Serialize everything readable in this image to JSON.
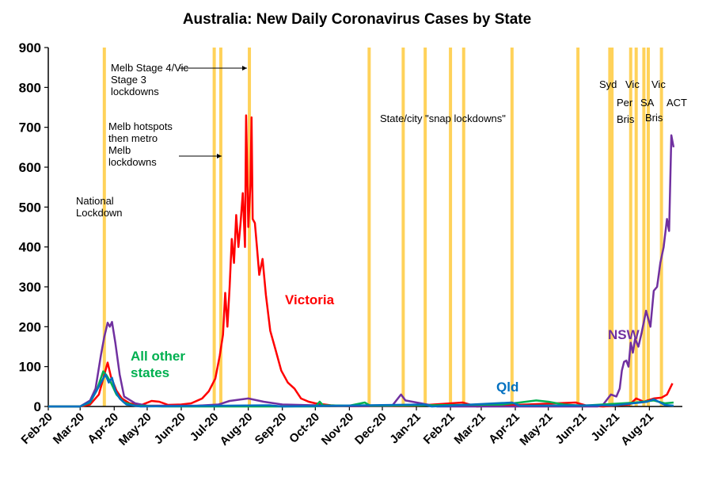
{
  "chart_data": {
    "type": "line",
    "title": "Australia: New Daily Coronavirus Cases by State",
    "xlabel": "",
    "ylabel": "",
    "ylim": [
      0,
      900
    ],
    "yticks": [
      0,
      100,
      200,
      300,
      400,
      500,
      600,
      700,
      800,
      900
    ],
    "xlim": [
      "2020-02-01",
      "2021-08-31"
    ],
    "xticks": [
      {
        "date": "2020-02-01",
        "label": "Feb-20"
      },
      {
        "date": "2020-03-01",
        "label": "Mar-20"
      },
      {
        "date": "2020-04-01",
        "label": "Apr-20"
      },
      {
        "date": "2020-05-01",
        "label": "May-20"
      },
      {
        "date": "2020-06-01",
        "label": "Jun-20"
      },
      {
        "date": "2020-07-01",
        "label": "Jul-20"
      },
      {
        "date": "2020-08-01",
        "label": "Aug-20"
      },
      {
        "date": "2020-09-01",
        "label": "Sep-20"
      },
      {
        "date": "2020-10-01",
        "label": "Oct-20"
      },
      {
        "date": "2020-11-01",
        "label": "Nov-20"
      },
      {
        "date": "2020-12-01",
        "label": "Dec-20"
      },
      {
        "date": "2021-01-01",
        "label": "Jan-21"
      },
      {
        "date": "2021-02-01",
        "label": "Feb-21"
      },
      {
        "date": "2021-03-01",
        "label": "Mar-21"
      },
      {
        "date": "2021-04-01",
        "label": "Apr-21"
      },
      {
        "date": "2021-05-01",
        "label": "May-21"
      },
      {
        "date": "2021-06-01",
        "label": "Jun-21"
      },
      {
        "date": "2021-07-01",
        "label": "Jul-21"
      },
      {
        "date": "2021-08-01",
        "label": "Aug-21"
      }
    ],
    "grid": false,
    "lockdown_lines": {
      "color": "#FFD25A",
      "dates": [
        "2020-03-23",
        "2020-07-01",
        "2020-07-07",
        "2020-08-02",
        "2020-11-19",
        "2020-12-20",
        "2021-01-09",
        "2021-02-01",
        "2021-02-13",
        "2021-03-29",
        "2021-05-28",
        "2021-06-26",
        "2021-06-28",
        "2021-07-15",
        "2021-07-20",
        "2021-07-27",
        "2021-07-31",
        "2021-08-12"
      ]
    },
    "annotations": [
      {
        "lines": [
          "National",
          "Lockdown"
        ]
      },
      {
        "lines": [
          "Melb hotspots",
          "then metro",
          "Melb",
          "lockdowns"
        ]
      },
      {
        "lines": [
          "Melb Stage 4/Vic",
          "Stage 3",
          "lockdowns"
        ]
      },
      {
        "lines": [
          "State/city \"snap lockdowns\""
        ]
      },
      {
        "lines": [
          "Syd"
        ]
      },
      {
        "lines": [
          "Vic"
        ]
      },
      {
        "lines": [
          "Per"
        ]
      },
      {
        "lines": [
          "SA"
        ]
      },
      {
        "lines": [
          "Bris"
        ]
      },
      {
        "lines": [
          "Vic"
        ]
      },
      {
        "lines": [
          "Bris"
        ]
      },
      {
        "lines": [
          "ACT"
        ]
      }
    ],
    "series_labels": [
      {
        "text": "Victoria",
        "series": "Victoria",
        "color": "#ff0000"
      },
      {
        "text": "NSW",
        "series": "NSW",
        "color": "#7030a0"
      },
      {
        "text": "All other states",
        "lines": [
          "All other",
          "states"
        ],
        "series": "All other states",
        "color": "#00b050"
      },
      {
        "text": "Qld",
        "series": "Qld",
        "color": "#0070c0"
      }
    ],
    "series": [
      {
        "name": "Victoria",
        "color": "#ff0000",
        "points": [
          [
            "2020-02-01",
            0
          ],
          [
            "2020-03-01",
            0
          ],
          [
            "2020-03-10",
            5
          ],
          [
            "2020-03-18",
            30
          ],
          [
            "2020-03-23",
            80
          ],
          [
            "2020-03-26",
            110
          ],
          [
            "2020-03-29",
            75
          ],
          [
            "2020-04-03",
            40
          ],
          [
            "2020-04-08",
            20
          ],
          [
            "2020-04-15",
            8
          ],
          [
            "2020-04-25",
            3
          ],
          [
            "2020-05-05",
            14
          ],
          [
            "2020-05-12",
            12
          ],
          [
            "2020-05-20",
            4
          ],
          [
            "2020-06-01",
            5
          ],
          [
            "2020-06-10",
            8
          ],
          [
            "2020-06-20",
            20
          ],
          [
            "2020-06-26",
            38
          ],
          [
            "2020-07-02",
            70
          ],
          [
            "2020-07-06",
            127
          ],
          [
            "2020-07-09",
            180
          ],
          [
            "2020-07-11",
            285
          ],
          [
            "2020-07-13",
            200
          ],
          [
            "2020-07-15",
            300
          ],
          [
            "2020-07-17",
            420
          ],
          [
            "2020-07-19",
            360
          ],
          [
            "2020-07-21",
            480
          ],
          [
            "2020-07-23",
            400
          ],
          [
            "2020-07-25",
            460
          ],
          [
            "2020-07-27",
            535
          ],
          [
            "2020-07-29",
            400
          ],
          [
            "2020-07-30",
            730
          ],
          [
            "2020-08-01",
            450
          ],
          [
            "2020-08-03",
            560
          ],
          [
            "2020-08-04",
            725
          ],
          [
            "2020-08-05",
            470
          ],
          [
            "2020-08-07",
            460
          ],
          [
            "2020-08-09",
            395
          ],
          [
            "2020-08-11",
            330
          ],
          [
            "2020-08-14",
            370
          ],
          [
            "2020-08-17",
            280
          ],
          [
            "2020-08-21",
            190
          ],
          [
            "2020-08-26",
            140
          ],
          [
            "2020-08-31",
            90
          ],
          [
            "2020-09-06",
            60
          ],
          [
            "2020-09-12",
            45
          ],
          [
            "2020-09-18",
            20
          ],
          [
            "2020-09-25",
            12
          ],
          [
            "2020-10-01",
            8
          ],
          [
            "2020-10-15",
            3
          ],
          [
            "2020-11-01",
            1
          ],
          [
            "2021-01-01",
            2
          ],
          [
            "2021-02-12",
            10
          ],
          [
            "2021-02-25",
            0
          ],
          [
            "2021-05-26",
            10
          ],
          [
            "2021-06-05",
            2
          ],
          [
            "2021-06-20",
            0
          ],
          [
            "2021-07-14",
            5
          ],
          [
            "2021-07-20",
            20
          ],
          [
            "2021-07-27",
            12
          ],
          [
            "2021-08-05",
            20
          ],
          [
            "2021-08-12",
            22
          ],
          [
            "2021-08-17",
            30
          ],
          [
            "2021-08-22",
            58
          ]
        ]
      },
      {
        "name": "NSW",
        "color": "#7030a0",
        "points": [
          [
            "2020-02-01",
            0
          ],
          [
            "2020-03-01",
            0
          ],
          [
            "2020-03-10",
            15
          ],
          [
            "2020-03-15",
            45
          ],
          [
            "2020-03-20",
            130
          ],
          [
            "2020-03-23",
            175
          ],
          [
            "2020-03-26",
            210
          ],
          [
            "2020-03-28",
            200
          ],
          [
            "2020-03-30",
            212
          ],
          [
            "2020-04-02",
            160
          ],
          [
            "2020-04-06",
            80
          ],
          [
            "2020-04-10",
            25
          ],
          [
            "2020-04-20",
            8
          ],
          [
            "2020-05-01",
            2
          ],
          [
            "2020-06-15",
            2
          ],
          [
            "2020-07-05",
            5
          ],
          [
            "2020-07-15",
            14
          ],
          [
            "2020-08-01",
            20
          ],
          [
            "2020-08-15",
            12
          ],
          [
            "2020-09-01",
            5
          ],
          [
            "2020-10-01",
            3
          ],
          [
            "2020-11-01",
            1
          ],
          [
            "2020-12-10",
            2
          ],
          [
            "2020-12-18",
            30
          ],
          [
            "2020-12-22",
            15
          ],
          [
            "2021-01-05",
            8
          ],
          [
            "2021-01-20",
            0
          ],
          [
            "2021-06-15",
            0
          ],
          [
            "2021-06-20",
            5
          ],
          [
            "2021-06-27",
            30
          ],
          [
            "2021-07-02",
            25
          ],
          [
            "2021-07-05",
            45
          ],
          [
            "2021-07-07",
            90
          ],
          [
            "2021-07-09",
            112
          ],
          [
            "2021-07-11",
            115
          ],
          [
            "2021-07-13",
            100
          ],
          [
            "2021-07-15",
            160
          ],
          [
            "2021-07-17",
            135
          ],
          [
            "2021-07-19",
            170
          ],
          [
            "2021-07-22",
            150
          ],
          [
            "2021-07-25",
            185
          ],
          [
            "2021-07-29",
            240
          ],
          [
            "2021-08-02",
            200
          ],
          [
            "2021-08-05",
            290
          ],
          [
            "2021-08-08",
            300
          ],
          [
            "2021-08-11",
            360
          ],
          [
            "2021-08-14",
            400
          ],
          [
            "2021-08-17",
            470
          ],
          [
            "2021-08-19",
            440
          ],
          [
            "2021-08-21",
            680
          ],
          [
            "2021-08-23",
            650
          ]
        ]
      },
      {
        "name": "All other states",
        "color": "#00b050",
        "points": [
          [
            "2020-02-01",
            0
          ],
          [
            "2020-03-01",
            0
          ],
          [
            "2020-03-10",
            10
          ],
          [
            "2020-03-16",
            40
          ],
          [
            "2020-03-22",
            88
          ],
          [
            "2020-03-25",
            78
          ],
          [
            "2020-03-29",
            60
          ],
          [
            "2020-04-03",
            30
          ],
          [
            "2020-04-10",
            10
          ],
          [
            "2020-04-20",
            2
          ],
          [
            "2020-05-15",
            0
          ],
          [
            "2020-10-01",
            0
          ],
          [
            "2020-10-05",
            12
          ],
          [
            "2020-10-08",
            3
          ],
          [
            "2020-11-01",
            2
          ],
          [
            "2020-11-15",
            10
          ],
          [
            "2020-11-20",
            2
          ],
          [
            "2021-01-10",
            3
          ],
          [
            "2021-03-20",
            5
          ],
          [
            "2021-04-05",
            10
          ],
          [
            "2021-04-20",
            15
          ],
          [
            "2021-05-01",
            12
          ],
          [
            "2021-05-15",
            5
          ],
          [
            "2021-06-01",
            2
          ],
          [
            "2021-07-20",
            10
          ],
          [
            "2021-08-05",
            15
          ],
          [
            "2021-08-15",
            8
          ],
          [
            "2021-08-23",
            10
          ]
        ]
      },
      {
        "name": "Qld",
        "color": "#0070c0",
        "points": [
          [
            "2020-02-01",
            0
          ],
          [
            "2020-03-01",
            0
          ],
          [
            "2020-03-10",
            12
          ],
          [
            "2020-03-16",
            40
          ],
          [
            "2020-03-21",
            65
          ],
          [
            "2020-03-24",
            80
          ],
          [
            "2020-03-27",
            60
          ],
          [
            "2020-03-30",
            72
          ],
          [
            "2020-04-02",
            40
          ],
          [
            "2020-04-06",
            20
          ],
          [
            "2020-04-12",
            5
          ],
          [
            "2020-04-25",
            0
          ],
          [
            "2020-08-20",
            3
          ],
          [
            "2020-09-01",
            0
          ],
          [
            "2021-01-08",
            5
          ],
          [
            "2021-01-15",
            0
          ],
          [
            "2021-03-29",
            10
          ],
          [
            "2021-04-05",
            2
          ],
          [
            "2021-07-01",
            3
          ],
          [
            "2021-07-30",
            12
          ],
          [
            "2021-08-05",
            18
          ],
          [
            "2021-08-15",
            4
          ],
          [
            "2021-08-23",
            2
          ]
        ]
      }
    ]
  }
}
